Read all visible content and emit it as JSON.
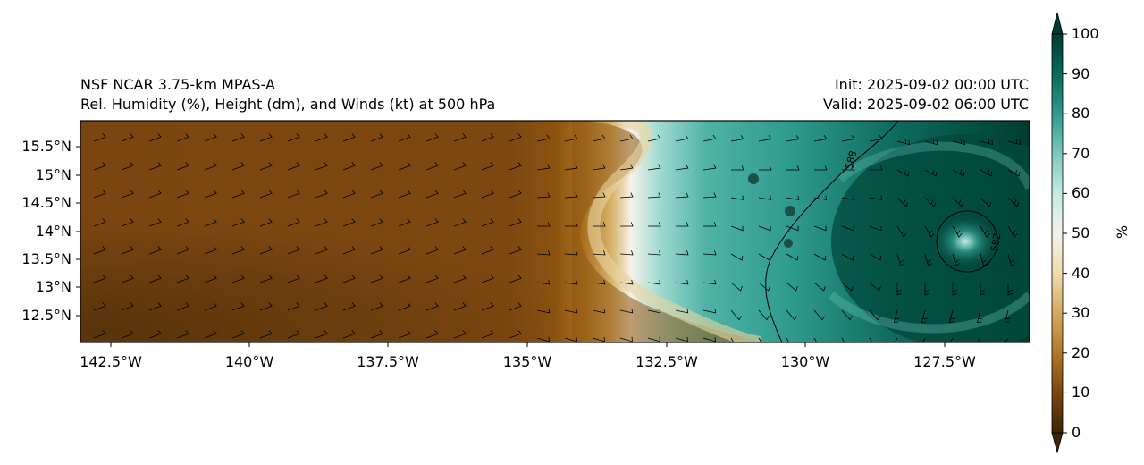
{
  "header": {
    "left_line1": "NSF NCAR 3.75-km MPAS-A",
    "left_line2": "Rel. Humidity (%), Height (dm), and Winds (kt) at 500 hPa",
    "right_line1": "Init: 2025-09-02 00:00 UTC",
    "right_line2": "Valid: 2025-09-02 06:00 UTC"
  },
  "map": {
    "lat_labels": [
      "15.5°N",
      "15°N",
      "14.5°N",
      "14°N",
      "13.5°N",
      "13°N",
      "12.5°N"
    ],
    "lon_labels": [
      "142.5°W",
      "140°W",
      "137.5°W",
      "135°W",
      "132.5°W",
      "130°W",
      "127.5°W"
    ],
    "contour_labels": [
      "588",
      "582"
    ]
  },
  "colorbar": {
    "ticks": [
      "100",
      "90",
      "80",
      "70",
      "60",
      "50",
      "40",
      "30",
      "20",
      "10",
      "0"
    ],
    "unit": "%",
    "colors": {
      "low": "#3d2507",
      "mid_brown": "#8c5310",
      "tan": "#d8b36a",
      "neutral": "#f5f2ea",
      "teal_light": "#9fdad0",
      "teal": "#2e9a8e",
      "high": "#003c30"
    }
  }
}
